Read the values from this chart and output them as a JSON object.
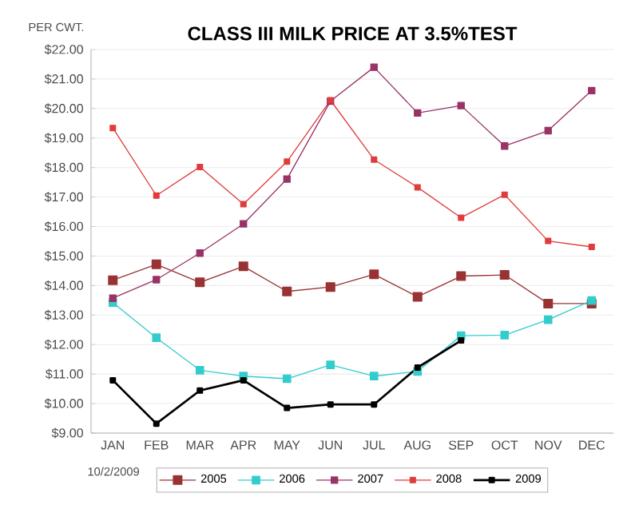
{
  "chart_data": {
    "type": "line",
    "title": "CLASS III MILK PRICE AT 3.5%TEST",
    "ylabel": "PER CWT.",
    "annotations": [
      "10/2/2009"
    ],
    "categories": [
      "JAN",
      "FEB",
      "MAR",
      "APR",
      "MAY",
      "JUN",
      "JUL",
      "AUG",
      "SEP",
      "OCT",
      "NOV",
      "DEC"
    ],
    "series": [
      {
        "name": "2005",
        "color": "#993333",
        "values": [
          14.18,
          14.72,
          14.11,
          14.65,
          13.8,
          13.95,
          14.38,
          13.62,
          14.32,
          14.36,
          13.39,
          13.39
        ]
      },
      {
        "name": "2006",
        "color": "#33cccc",
        "values": [
          13.42,
          12.23,
          11.13,
          10.93,
          10.84,
          11.31,
          10.93,
          11.09,
          12.3,
          12.32,
          12.84,
          13.49
        ]
      },
      {
        "name": "2007",
        "color": "#993366",
        "values": [
          13.57,
          14.2,
          15.1,
          16.09,
          17.61,
          20.25,
          21.4,
          19.85,
          20.1,
          18.73,
          19.25,
          20.61
        ]
      },
      {
        "name": "2008",
        "color": "#e03c3c",
        "values": [
          19.34,
          17.05,
          18.02,
          16.76,
          18.2,
          20.28,
          18.27,
          17.33,
          16.3,
          17.08,
          15.51,
          15.31
        ]
      },
      {
        "name": "2009",
        "color": "#000000",
        "values": [
          10.79,
          9.32,
          10.44,
          10.79,
          9.85,
          9.97,
          9.97,
          11.22,
          12.14,
          null,
          null,
          null
        ]
      }
    ],
    "ylim": [
      9,
      22
    ],
    "yticks": [
      {
        "value": 9,
        "label": "$9.00"
      },
      {
        "value": 10,
        "label": "$10.00"
      },
      {
        "value": 11,
        "label": "$11.00"
      },
      {
        "value": 12,
        "label": "$12.00"
      },
      {
        "value": 13,
        "label": "$13.00"
      },
      {
        "value": 14,
        "label": "$14.00"
      },
      {
        "value": 15,
        "label": "$15.00"
      },
      {
        "value": 16,
        "label": "$16.00"
      },
      {
        "value": 17,
        "label": "$17.00"
      },
      {
        "value": 18,
        "label": "$18.00"
      },
      {
        "value": 19,
        "label": "$19.00"
      },
      {
        "value": 20,
        "label": "$20.00"
      },
      {
        "value": 21,
        "label": "$21.00"
      },
      {
        "value": 22,
        "label": "$22.00"
      }
    ],
    "grid": "y",
    "legend": "bottom",
    "marker": "square",
    "line_style": "solid"
  }
}
